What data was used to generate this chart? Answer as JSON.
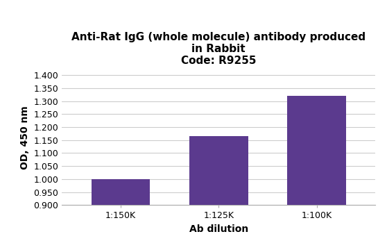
{
  "title_line1": "Anti-Rat IgG (whole molecule) antibody produced",
  "title_line2": "in Rabbit",
  "title_line3": "Code: R9255",
  "categories": [
    "1:150K",
    "1:125K",
    "1:100K"
  ],
  "values": [
    1.0,
    1.165,
    1.32
  ],
  "bar_color": "#5b3a8e",
  "xlabel": "Ab dilution",
  "ylabel": "OD, 450 nm",
  "ylim_min": 0.9,
  "ylim_max": 1.42,
  "yticks": [
    0.9,
    0.95,
    1.0,
    1.05,
    1.1,
    1.15,
    1.2,
    1.25,
    1.3,
    1.35,
    1.4
  ],
  "title_fontsize": 11,
  "axis_label_fontsize": 10,
  "tick_fontsize": 9,
  "background_color": "#ffffff",
  "grid_color": "#cccccc",
  "bar_width": 0.6
}
